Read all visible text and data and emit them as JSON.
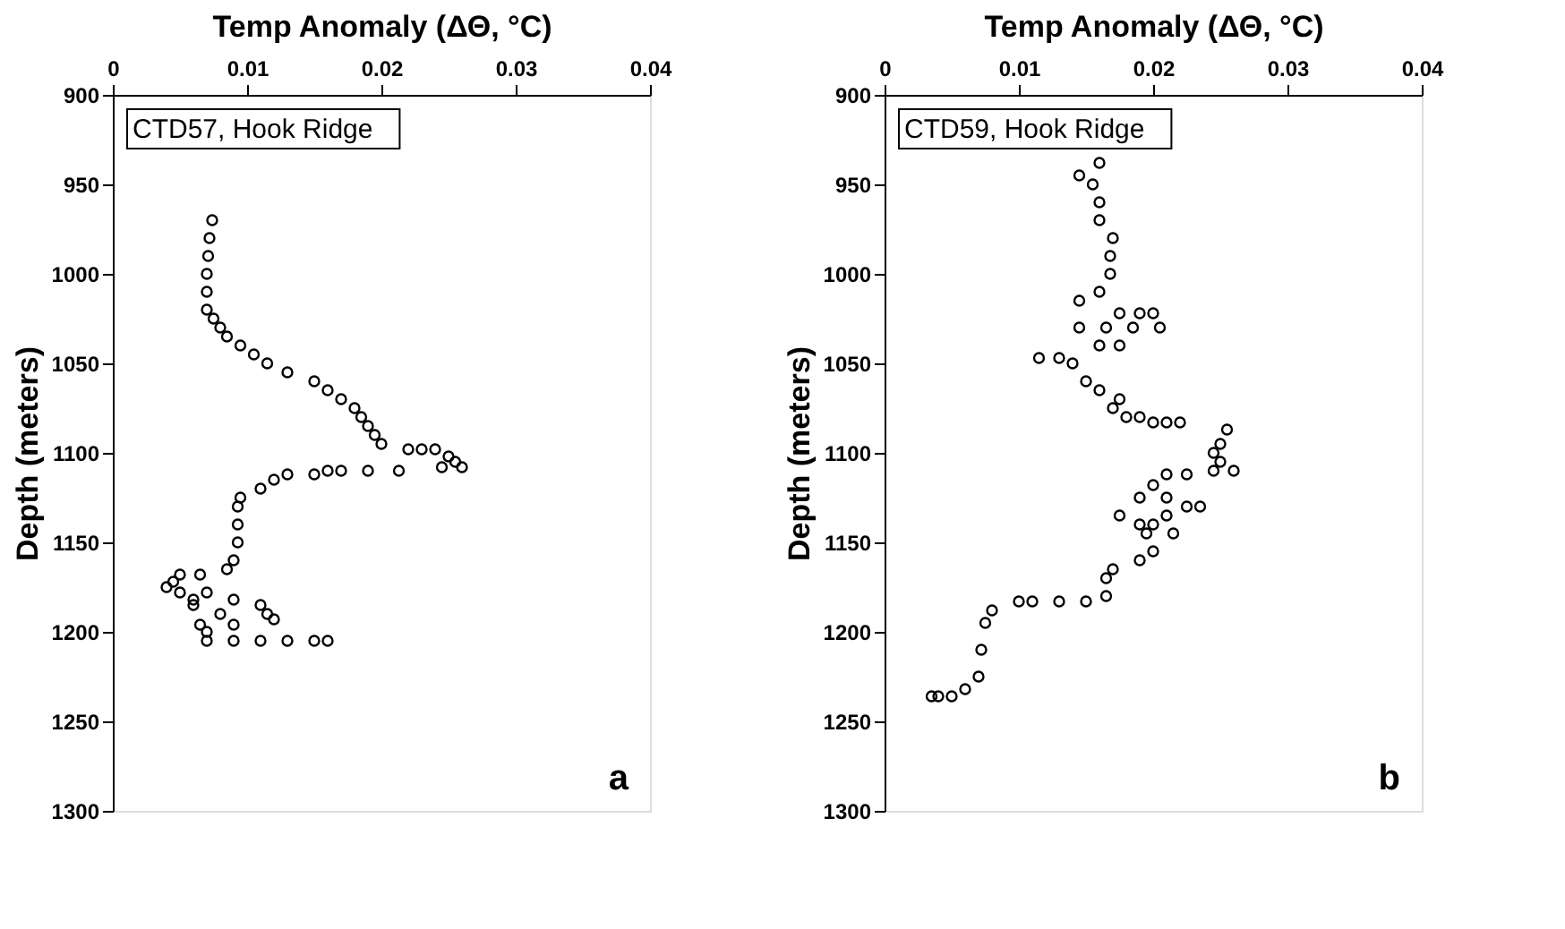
{
  "chart_data": [
    {
      "type": "scatter",
      "xlabel": "Temp Anomaly (ΔΘ, °C)",
      "ylabel": "Depth (meters)",
      "xlim": [
        0,
        0.04
      ],
      "xticks": [
        0,
        0.01,
        0.02,
        0.03,
        0.04
      ],
      "ylim": [
        1300,
        900
      ],
      "yticks": [
        900,
        950,
        1000,
        1050,
        1100,
        1150,
        1200,
        1250,
        1300
      ],
      "grid": false,
      "marker": "circle",
      "annotations": [
        "CTD57, Hook Ridge",
        "a"
      ],
      "series": [
        {
          "color": "#000000",
          "x": [
            0.0074,
            0.0072,
            0.0071,
            0.007,
            0.007,
            0.007,
            0.0075,
            0.008,
            0.0085,
            0.0095,
            0.0105,
            0.0115,
            0.013,
            0.015,
            0.016,
            0.017,
            0.018,
            0.0185,
            0.019,
            0.0195,
            0.02,
            0.022,
            0.023,
            0.024,
            0.025,
            0.0255,
            0.026,
            0.0245,
            0.0213,
            0.019,
            0.017,
            0.016,
            0.015,
            0.013,
            0.012,
            0.011,
            0.0095,
            0.0093,
            0.0093,
            0.0093,
            0.009,
            0.0085,
            0.0065,
            0.005,
            0.0045,
            0.004,
            0.005,
            0.007,
            0.006,
            0.009,
            0.006,
            0.011,
            0.008,
            0.0115,
            0.012,
            0.0065,
            0.009,
            0.007,
            0.007,
            0.009,
            0.011,
            0.013,
            0.015,
            0.016
          ],
          "values": [
            970,
            980,
            990,
            1000,
            1010,
            1020,
            1025,
            1030,
            1035,
            1040,
            1045,
            1050,
            1055,
            1060,
            1065,
            1070,
            1075,
            1080,
            1085,
            1090,
            1095,
            1098,
            1098,
            1098,
            1102,
            1105,
            1108,
            1108,
            1110,
            1110,
            1110,
            1110,
            1112,
            1112,
            1115,
            1120,
            1125,
            1130,
            1140,
            1150,
            1160,
            1165,
            1168,
            1168,
            1172,
            1175,
            1178,
            1178,
            1182,
            1182,
            1185,
            1185,
            1190,
            1190,
            1193,
            1196,
            1196,
            1200,
            1205,
            1205,
            1205,
            1205,
            1205,
            1205
          ]
        }
      ]
    },
    {
      "type": "scatter",
      "xlabel": "Temp Anomaly (ΔΘ, °C)",
      "ylabel": "Depth (meters)",
      "xlim": [
        0,
        0.04
      ],
      "xticks": [
        0,
        0.01,
        0.02,
        0.03,
        0.04
      ],
      "ylim": [
        1300,
        900
      ],
      "yticks": [
        900,
        950,
        1000,
        1050,
        1100,
        1150,
        1200,
        1250,
        1300
      ],
      "grid": false,
      "marker": "circle",
      "annotations": [
        "CTD59, Hook Ridge",
        "b"
      ],
      "series": [
        {
          "color": "#000000",
          "x": [
            0.016,
            0.0145,
            0.0155,
            0.016,
            0.016,
            0.017,
            0.0168,
            0.0168,
            0.016,
            0.0145,
            0.0175,
            0.019,
            0.02,
            0.0145,
            0.0165,
            0.0185,
            0.0205,
            0.016,
            0.0175,
            0.0115,
            0.013,
            0.014,
            0.015,
            0.016,
            0.0175,
            0.017,
            0.018,
            0.019,
            0.02,
            0.021,
            0.022,
            0.0255,
            0.025,
            0.0245,
            0.025,
            0.026,
            0.0245,
            0.021,
            0.0225,
            0.02,
            0.019,
            0.021,
            0.0225,
            0.0235,
            0.0175,
            0.021,
            0.019,
            0.02,
            0.0195,
            0.0215,
            0.02,
            0.019,
            0.017,
            0.0165,
            0.0165,
            0.015,
            0.013,
            0.011,
            0.01,
            0.008,
            0.0075,
            0.0072,
            0.007,
            0.006,
            0.005,
            0.004,
            0.0035
          ],
          "values": [
            938,
            945,
            950,
            960,
            970,
            980,
            990,
            1000,
            1010,
            1015,
            1022,
            1022,
            1022,
            1030,
            1030,
            1030,
            1030,
            1040,
            1040,
            1047,
            1047,
            1050,
            1060,
            1065,
            1070,
            1075,
            1080,
            1080,
            1083,
            1083,
            1083,
            1087,
            1095,
            1100,
            1105,
            1110,
            1110,
            1112,
            1112,
            1118,
            1125,
            1125,
            1130,
            1130,
            1135,
            1135,
            1140,
            1140,
            1145,
            1145,
            1155,
            1160,
            1165,
            1170,
            1180,
            1183,
            1183,
            1183,
            1183,
            1188,
            1195,
            1210,
            1225,
            1232,
            1236,
            1236,
            1236
          ]
        }
      ]
    }
  ]
}
